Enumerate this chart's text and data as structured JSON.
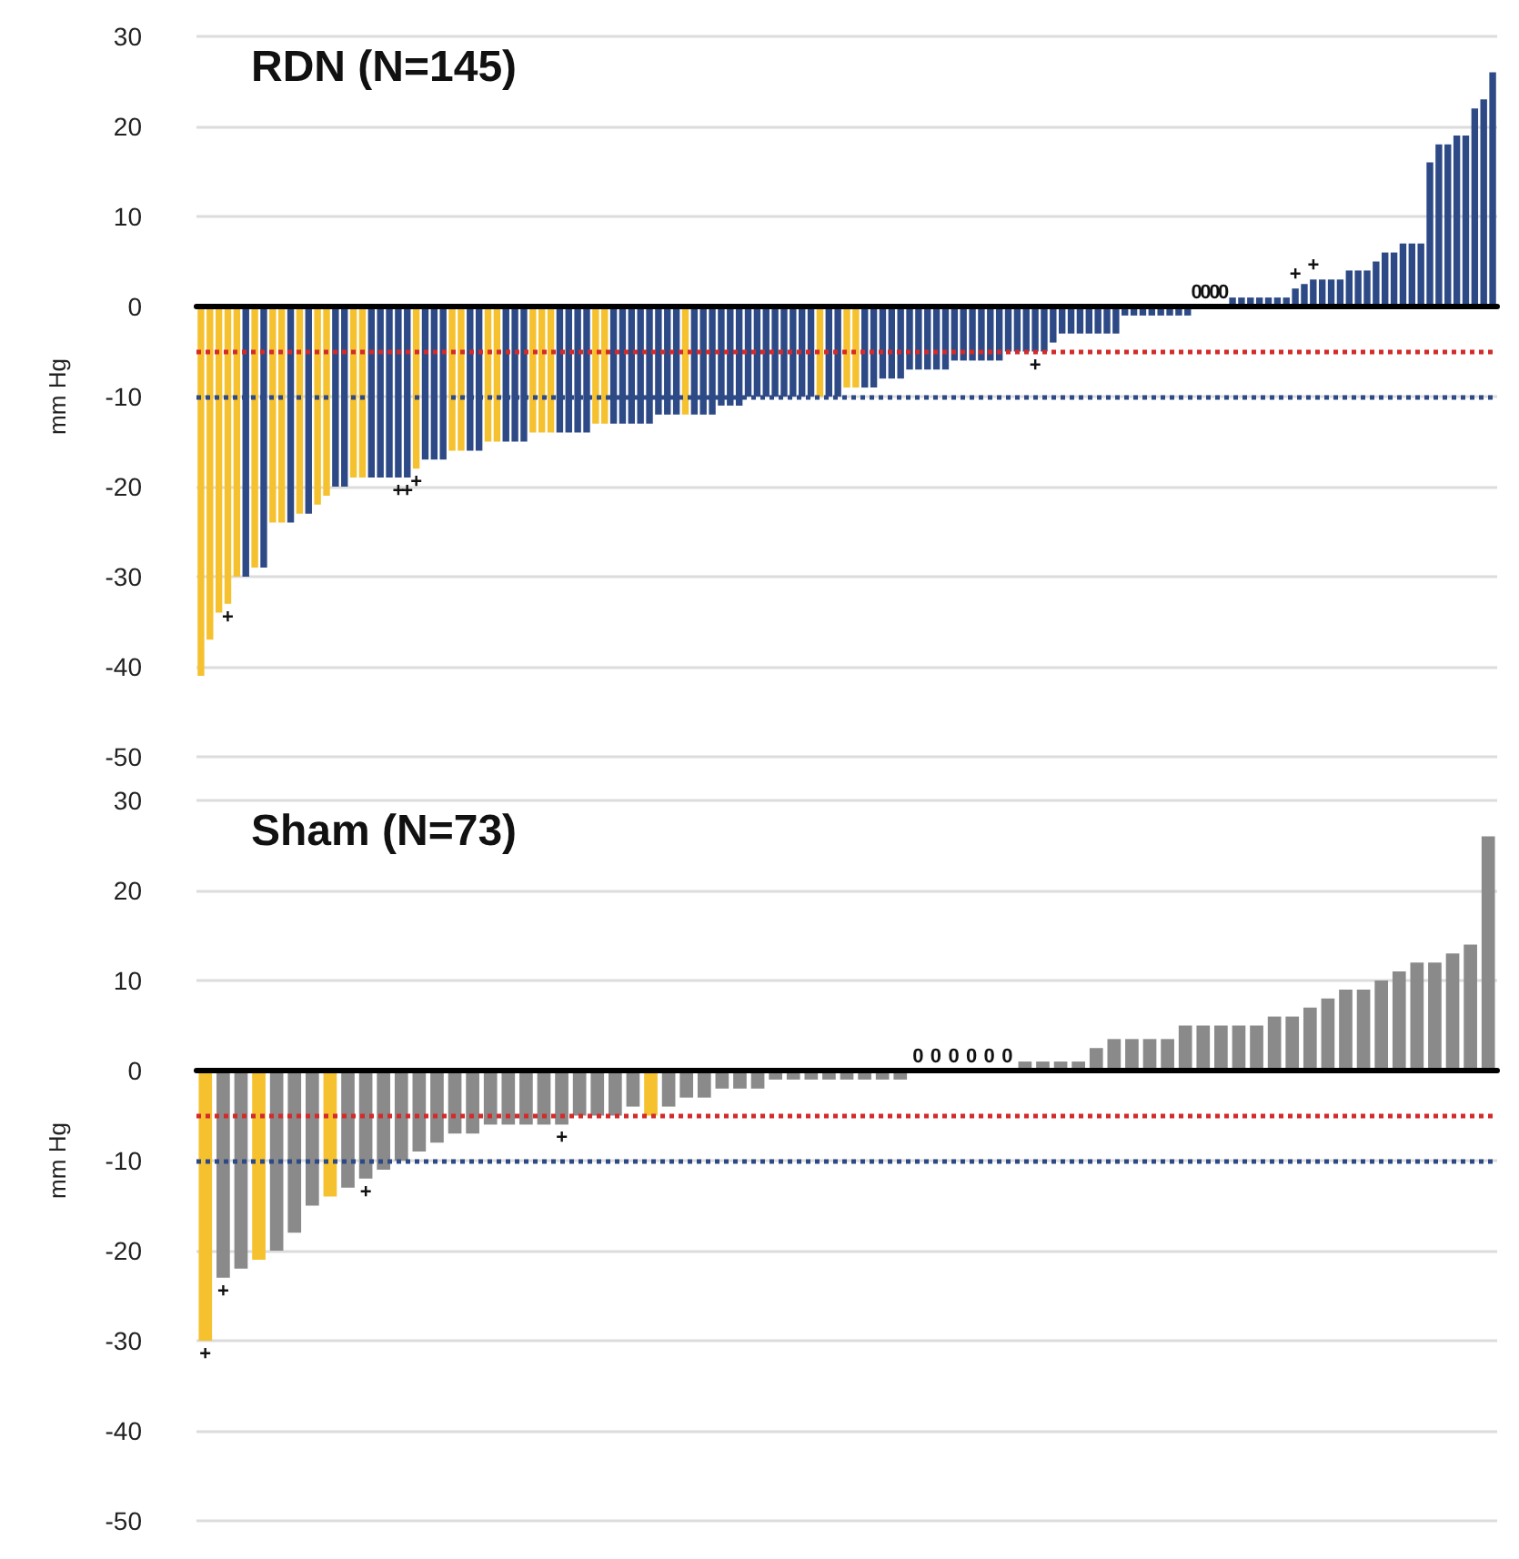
{
  "chart_data": [
    {
      "type": "bar",
      "title": "RDN (N=145)",
      "ylabel": "mm Hg",
      "ylim": [
        -50,
        30
      ],
      "yticks": [
        -50,
        -40,
        -30,
        -20,
        -10,
        0,
        10,
        20,
        30
      ],
      "grid": "y",
      "tick_labels": "y",
      "categories": [
        null,
        null,
        null,
        null,
        null,
        null,
        null,
        null,
        null,
        null,
        null,
        null,
        null,
        null,
        null,
        null,
        null,
        null,
        null,
        null,
        null,
        null,
        null,
        null,
        null,
        null,
        null,
        null,
        null,
        null,
        null,
        null,
        null,
        null,
        null,
        null,
        null,
        null,
        null,
        null,
        null,
        null,
        null,
        null,
        null,
        null,
        null,
        null,
        null,
        null,
        null,
        null,
        null,
        null,
        null,
        null,
        null,
        null,
        null,
        null,
        null,
        null,
        null,
        null,
        null,
        null,
        null,
        null,
        null,
        null,
        null,
        null,
        null,
        null,
        null,
        null,
        null,
        null,
        null,
        null,
        null,
        null,
        null,
        null,
        null,
        null,
        null,
        null,
        null,
        null,
        null,
        null,
        null,
        null,
        null,
        null,
        null,
        null,
        null,
        null,
        null,
        null,
        null,
        null,
        null,
        null,
        null,
        null,
        null,
        null,
        null,
        null,
        null,
        null,
        null,
        null,
        null,
        null,
        null,
        null,
        null,
        null,
        null,
        null,
        null,
        null,
        null,
        null,
        null,
        null,
        null,
        null,
        null,
        null,
        null,
        null,
        null,
        null,
        null,
        null,
        null,
        null,
        null,
        null,
        null
      ],
      "values": [
        -41,
        -37,
        -34,
        -33,
        -30,
        -30,
        -29,
        -29,
        -24,
        -24,
        -24,
        -23,
        -23,
        -22,
        -21,
        -20,
        -20,
        -19,
        -19,
        -19,
        -19,
        -19,
        -19,
        -19,
        -18,
        -17,
        -17,
        -17,
        -16,
        -16,
        -16,
        -16,
        -15,
        -15,
        -15,
        -15,
        -15,
        -14,
        -14,
        -14,
        -14,
        -14,
        -14,
        -14,
        -13,
        -13,
        -13,
        -13,
        -13,
        -13,
        -13,
        -12,
        -12,
        -12,
        -12,
        -12,
        -12,
        -12,
        -11,
        -11,
        -11,
        -10,
        -10,
        -10,
        -10,
        -10,
        -10,
        -10,
        -10,
        -10,
        -10,
        -10,
        -9,
        -9,
        -9,
        -9,
        -8,
        -8,
        -8,
        -7,
        -7,
        -7,
        -7,
        -7,
        -6,
        -6,
        -6,
        -6,
        -6,
        -6,
        -5,
        -5,
        -5,
        -5,
        -5,
        -4,
        -3,
        -3,
        -3,
        -3,
        -3,
        -3,
        -3,
        -1,
        -1,
        -1,
        -1,
        -1,
        -1,
        -1,
        -1,
        0,
        0,
        0,
        0,
        1,
        1,
        1,
        1,
        1,
        1,
        1,
        2,
        2.5,
        3,
        3,
        3,
        3,
        4,
        4,
        4,
        5,
        6,
        6,
        7,
        7,
        7,
        16,
        18,
        18,
        19,
        19,
        22,
        23,
        26
      ],
      "colors": [
        "#f5c12e",
        "#f5c12e",
        "#f5c12e",
        "#f5c12e",
        "#f5c12e",
        "#2d4a86",
        "#f5c12e",
        "#2d4a86",
        "#f5c12e",
        "#f5c12e",
        "#2d4a86",
        "#f5c12e",
        "#2d4a86",
        "#f5c12e",
        "#f5c12e",
        "#2d4a86",
        "#2d4a86",
        "#f5c12e",
        "#f5c12e",
        "#2d4a86",
        "#2d4a86",
        "#2d4a86",
        "#2d4a86",
        "#2d4a86",
        "#f5c12e",
        "#2d4a86",
        "#2d4a86",
        "#2d4a86",
        "#f5c12e",
        "#f5c12e",
        "#2d4a86",
        "#2d4a86",
        "#f5c12e",
        "#f5c12e",
        "#2d4a86",
        "#2d4a86",
        "#2d4a86",
        "#f5c12e",
        "#f5c12e",
        "#f5c12e",
        "#2d4a86",
        "#2d4a86",
        "#2d4a86",
        "#2d4a86",
        "#f5c12e",
        "#f5c12e",
        "#2d4a86",
        "#2d4a86",
        "#2d4a86",
        "#2d4a86",
        "#2d4a86",
        "#2d4a86",
        "#2d4a86",
        "#2d4a86",
        "#f5c12e",
        "#2d4a86",
        "#2d4a86",
        "#2d4a86",
        "#2d4a86",
        "#2d4a86",
        "#2d4a86",
        "#2d4a86",
        "#2d4a86",
        "#2d4a86",
        "#2d4a86",
        "#2d4a86",
        "#2d4a86",
        "#2d4a86",
        "#2d4a86",
        "#f5c12e",
        "#2d4a86",
        "#2d4a86",
        "#f5c12e",
        "#f5c12e",
        "#2d4a86",
        "#2d4a86",
        "#2d4a86",
        "#2d4a86",
        "#2d4a86",
        "#2d4a86",
        "#2d4a86",
        "#2d4a86",
        "#2d4a86",
        "#2d4a86",
        "#2d4a86",
        "#2d4a86",
        "#2d4a86",
        "#2d4a86",
        "#2d4a86",
        "#2d4a86",
        "#2d4a86",
        "#2d4a86",
        "#2d4a86",
        "#2d4a86",
        "#2d4a86",
        "#2d4a86",
        "#2d4a86",
        "#2d4a86",
        "#2d4a86",
        "#2d4a86",
        "#2d4a86",
        "#2d4a86",
        "#2d4a86",
        "#2d4a86",
        "#2d4a86",
        "#2d4a86",
        "#2d4a86",
        "#2d4a86",
        "#2d4a86",
        "#2d4a86",
        "#2d4a86",
        "#2d4a86",
        "#2d4a86",
        "#2d4a86",
        "#2d4a86",
        "#2d4a86",
        "#2d4a86",
        "#2d4a86",
        "#2d4a86",
        "#2d4a86",
        "#2d4a86",
        "#2d4a86",
        "#2d4a86",
        "#2d4a86",
        "#2d4a86",
        "#2d4a86",
        "#2d4a86",
        "#2d4a86",
        "#2d4a86",
        "#2d4a86",
        "#2d4a86",
        "#2d4a86",
        "#2d4a86",
        "#2d4a86",
        "#2d4a86",
        "#2d4a86",
        "#2d4a86",
        "#2d4a86",
        "#2d4a86",
        "#2d4a86",
        "#2d4a86",
        "#2d4a86",
        "#2d4a86",
        "#2d4a86",
        "#2d4a86"
      ],
      "value_labels": [
        null,
        null,
        null,
        "+",
        null,
        null,
        null,
        null,
        null,
        null,
        null,
        null,
        null,
        null,
        null,
        null,
        null,
        null,
        null,
        null,
        null,
        null,
        "+",
        "+",
        "+",
        null,
        null,
        null,
        null,
        null,
        null,
        null,
        null,
        null,
        null,
        null,
        null,
        null,
        null,
        null,
        null,
        null,
        null,
        null,
        null,
        null,
        null,
        null,
        null,
        null,
        null,
        null,
        null,
        null,
        null,
        null,
        null,
        null,
        null,
        null,
        null,
        null,
        null,
        null,
        null,
        null,
        null,
        null,
        null,
        null,
        null,
        null,
        null,
        null,
        null,
        null,
        null,
        null,
        null,
        null,
        null,
        null,
        null,
        null,
        null,
        null,
        null,
        null,
        null,
        null,
        null,
        null,
        null,
        "+",
        null,
        null,
        null,
        null,
        null,
        null,
        null,
        null,
        null,
        null,
        null,
        null,
        null,
        null,
        null,
        null,
        null,
        "0",
        "0",
        "0",
        "0",
        null,
        null,
        null,
        null,
        null,
        null,
        null,
        "+",
        null,
        "+",
        null,
        null,
        null,
        null,
        null,
        null,
        null,
        null,
        null,
        null,
        null,
        null,
        null,
        null,
        null,
        null,
        null,
        null,
        null,
        null
      ],
      "ref_lines": [
        {
          "axis": "y",
          "value": -5,
          "color": "#d42a2a",
          "line_style": "dotted"
        },
        {
          "axis": "y",
          "value": -10,
          "color": "#2d4a86",
          "line_style": "dotted"
        }
      ]
    },
    {
      "type": "bar",
      "title": "Sham (N=73)",
      "ylabel": "mm Hg",
      "ylim": [
        -50,
        30
      ],
      "yticks": [
        -50,
        -40,
        -30,
        -20,
        -10,
        0,
        10,
        20,
        30
      ],
      "grid": "y",
      "tick_labels": "y",
      "categories": [
        null,
        null,
        null,
        null,
        null,
        null,
        null,
        null,
        null,
        null,
        null,
        null,
        null,
        null,
        null,
        null,
        null,
        null,
        null,
        null,
        null,
        null,
        null,
        null,
        null,
        null,
        null,
        null,
        null,
        null,
        null,
        null,
        null,
        null,
        null,
        null,
        null,
        null,
        null,
        null,
        null,
        null,
        null,
        null,
        null,
        null,
        null,
        null,
        null,
        null,
        null,
        null,
        null,
        null,
        null,
        null,
        null,
        null,
        null,
        null,
        null,
        null,
        null,
        null,
        null,
        null,
        null,
        null,
        null,
        null,
        null,
        null,
        null
      ],
      "values": [
        -30,
        -23,
        -22,
        -21,
        -20,
        -18,
        -15,
        -14,
        -13,
        -12,
        -11,
        -10,
        -9,
        -8,
        -7,
        -7,
        -6,
        -6,
        -6,
        -6,
        -6,
        -5,
        -5,
        -5,
        -4,
        -5,
        -4,
        -3,
        -3,
        -2,
        -2,
        -2,
        -1,
        -1,
        -1,
        -1,
        -1,
        -1,
        -1,
        -1,
        0,
        0,
        0,
        0,
        0,
        0,
        1,
        1,
        1,
        1,
        2.5,
        3.5,
        3.5,
        3.5,
        3.5,
        5,
        5,
        5,
        5,
        5,
        6,
        6,
        7,
        8,
        9,
        9,
        10,
        11,
        12,
        12,
        13,
        14,
        26
      ],
      "colors": [
        "#f5c12e",
        "#8a8a8a",
        "#8a8a8a",
        "#f5c12e",
        "#8a8a8a",
        "#8a8a8a",
        "#8a8a8a",
        "#f5c12e",
        "#8a8a8a",
        "#8a8a8a",
        "#8a8a8a",
        "#8a8a8a",
        "#8a8a8a",
        "#8a8a8a",
        "#8a8a8a",
        "#8a8a8a",
        "#8a8a8a",
        "#8a8a8a",
        "#8a8a8a",
        "#8a8a8a",
        "#8a8a8a",
        "#8a8a8a",
        "#8a8a8a",
        "#8a8a8a",
        "#8a8a8a",
        "#f5c12e",
        "#8a8a8a",
        "#8a8a8a",
        "#8a8a8a",
        "#8a8a8a",
        "#8a8a8a",
        "#8a8a8a",
        "#8a8a8a",
        "#8a8a8a",
        "#8a8a8a",
        "#8a8a8a",
        "#8a8a8a",
        "#8a8a8a",
        "#8a8a8a",
        "#8a8a8a",
        "#8a8a8a",
        "#8a8a8a",
        "#8a8a8a",
        "#8a8a8a",
        "#8a8a8a",
        "#8a8a8a",
        "#8a8a8a",
        "#8a8a8a",
        "#8a8a8a",
        "#8a8a8a",
        "#8a8a8a",
        "#8a8a8a",
        "#8a8a8a",
        "#8a8a8a",
        "#8a8a8a",
        "#8a8a8a",
        "#8a8a8a",
        "#8a8a8a",
        "#8a8a8a",
        "#8a8a8a",
        "#8a8a8a",
        "#8a8a8a",
        "#8a8a8a",
        "#8a8a8a",
        "#8a8a8a",
        "#8a8a8a",
        "#8a8a8a",
        "#8a8a8a",
        "#8a8a8a",
        "#8a8a8a",
        "#8a8a8a",
        "#8a8a8a",
        "#8a8a8a"
      ],
      "value_labels": [
        "+",
        "+",
        null,
        null,
        null,
        null,
        null,
        null,
        null,
        "+",
        null,
        null,
        null,
        null,
        null,
        null,
        null,
        null,
        null,
        null,
        "+",
        null,
        null,
        null,
        null,
        null,
        null,
        null,
        null,
        null,
        null,
        null,
        null,
        null,
        null,
        null,
        null,
        null,
        null,
        null,
        "0",
        "0",
        "0",
        "0",
        "0",
        "0",
        null,
        null,
        null,
        null,
        null,
        null,
        null,
        null,
        null,
        null,
        null,
        null,
        null,
        null,
        null,
        null,
        null,
        null,
        null,
        null,
        null,
        null,
        null,
        null,
        null,
        null,
        null
      ],
      "ref_lines": [
        {
          "axis": "y",
          "value": -5,
          "color": "#d42a2a",
          "line_style": "dotted"
        },
        {
          "axis": "y",
          "value": -10,
          "color": "#2d4a86",
          "line_style": "dotted"
        }
      ]
    }
  ]
}
